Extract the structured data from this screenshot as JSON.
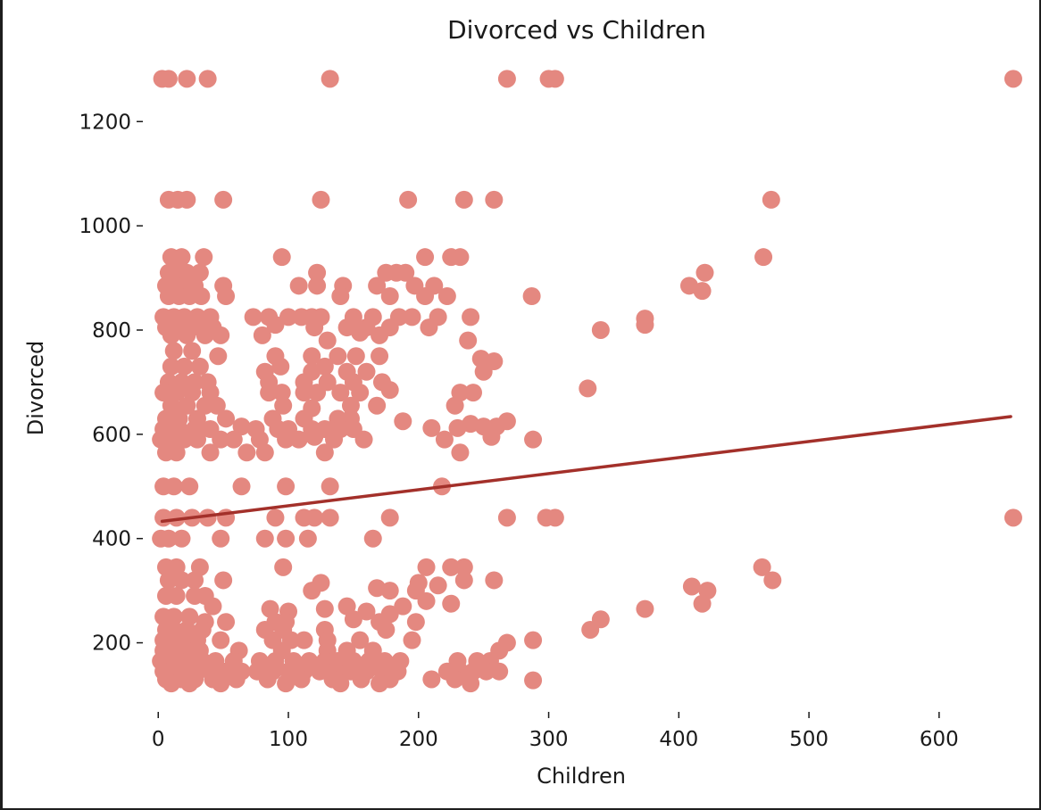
{
  "chart_data": {
    "type": "scatter",
    "title": "Divorced vs Children",
    "xlabel": "Children",
    "ylabel": "Divorced",
    "xlim": [
      -18,
      668
    ],
    "ylim": [
      88,
      1310
    ],
    "xticks": [
      0,
      100,
      200,
      300,
      400,
      500,
      600
    ],
    "yticks": [
      200,
      400,
      600,
      800,
      1000,
      1200
    ],
    "grid": false,
    "colors": {
      "points": "#e48880",
      "trend": "#a3302a",
      "text": "#1a1a1a"
    },
    "trendline": {
      "x": [
        3,
        655
      ],
      "y": [
        433,
        634
      ]
    },
    "points": [
      [
        3,
        1282
      ],
      [
        8,
        1282
      ],
      [
        22,
        1282
      ],
      [
        38,
        1282
      ],
      [
        132,
        1282
      ],
      [
        268,
        1282
      ],
      [
        300,
        1282
      ],
      [
        305,
        1282
      ],
      [
        657,
        1282
      ],
      [
        8,
        1050
      ],
      [
        15,
        1050
      ],
      [
        22,
        1050
      ],
      [
        50,
        1050
      ],
      [
        125,
        1050
      ],
      [
        192,
        1050
      ],
      [
        235,
        1050
      ],
      [
        258,
        1050
      ],
      [
        471,
        1050
      ],
      [
        10,
        940
      ],
      [
        18,
        940
      ],
      [
        35,
        940
      ],
      [
        95,
        940
      ],
      [
        205,
        940
      ],
      [
        225,
        940
      ],
      [
        232,
        940
      ],
      [
        465,
        940
      ],
      [
        8,
        910
      ],
      [
        15,
        910
      ],
      [
        22,
        910
      ],
      [
        32,
        910
      ],
      [
        122,
        910
      ],
      [
        175,
        910
      ],
      [
        183,
        910
      ],
      [
        190,
        910
      ],
      [
        420,
        910
      ],
      [
        6,
        885
      ],
      [
        14,
        885
      ],
      [
        20,
        885
      ],
      [
        28,
        885
      ],
      [
        50,
        885
      ],
      [
        108,
        885
      ],
      [
        122,
        885
      ],
      [
        142,
        885
      ],
      [
        168,
        885
      ],
      [
        197,
        885
      ],
      [
        212,
        885
      ],
      [
        408,
        885
      ],
      [
        8,
        865
      ],
      [
        16,
        865
      ],
      [
        24,
        865
      ],
      [
        33,
        865
      ],
      [
        52,
        865
      ],
      [
        140,
        865
      ],
      [
        178,
        865
      ],
      [
        205,
        865
      ],
      [
        222,
        865
      ],
      [
        287,
        865
      ],
      [
        418,
        875
      ],
      [
        4,
        825
      ],
      [
        12,
        825
      ],
      [
        20,
        825
      ],
      [
        30,
        825
      ],
      [
        40,
        825
      ],
      [
        73,
        825
      ],
      [
        85,
        825
      ],
      [
        100,
        825
      ],
      [
        110,
        825
      ],
      [
        118,
        825
      ],
      [
        125,
        825
      ],
      [
        150,
        825
      ],
      [
        165,
        825
      ],
      [
        185,
        825
      ],
      [
        195,
        825
      ],
      [
        215,
        825
      ],
      [
        240,
        825
      ],
      [
        374,
        822
      ],
      [
        6,
        805
      ],
      [
        14,
        805
      ],
      [
        22,
        805
      ],
      [
        32,
        805
      ],
      [
        42,
        805
      ],
      [
        90,
        810
      ],
      [
        120,
        805
      ],
      [
        145,
        805
      ],
      [
        160,
        805
      ],
      [
        178,
        805
      ],
      [
        208,
        805
      ],
      [
        340,
        800
      ],
      [
        374,
        810
      ],
      [
        10,
        790
      ],
      [
        22,
        790
      ],
      [
        36,
        790
      ],
      [
        48,
        790
      ],
      [
        80,
        790
      ],
      [
        130,
        780
      ],
      [
        155,
        795
      ],
      [
        170,
        790
      ],
      [
        238,
        780
      ],
      [
        12,
        760
      ],
      [
        26,
        760
      ],
      [
        46,
        750
      ],
      [
        90,
        750
      ],
      [
        118,
        750
      ],
      [
        138,
        750
      ],
      [
        152,
        750
      ],
      [
        170,
        750
      ],
      [
        248,
        745
      ],
      [
        258,
        740
      ],
      [
        10,
        730
      ],
      [
        20,
        730
      ],
      [
        32,
        730
      ],
      [
        82,
        720
      ],
      [
        94,
        730
      ],
      [
        118,
        720
      ],
      [
        128,
        730
      ],
      [
        145,
        720
      ],
      [
        160,
        720
      ],
      [
        250,
        720
      ],
      [
        8,
        700
      ],
      [
        18,
        700
      ],
      [
        28,
        700
      ],
      [
        38,
        700
      ],
      [
        85,
        700
      ],
      [
        112,
        700
      ],
      [
        130,
        700
      ],
      [
        150,
        700
      ],
      [
        172,
        700
      ],
      [
        4,
        680
      ],
      [
        14,
        680
      ],
      [
        26,
        680
      ],
      [
        40,
        680
      ],
      [
        85,
        680
      ],
      [
        95,
        680
      ],
      [
        112,
        680
      ],
      [
        122,
        680
      ],
      [
        140,
        680
      ],
      [
        155,
        680
      ],
      [
        178,
        685
      ],
      [
        232,
        680
      ],
      [
        242,
        680
      ],
      [
        330,
        688
      ],
      [
        10,
        655
      ],
      [
        22,
        655
      ],
      [
        36,
        655
      ],
      [
        45,
        655
      ],
      [
        96,
        655
      ],
      [
        118,
        650
      ],
      [
        148,
        655
      ],
      [
        168,
        655
      ],
      [
        228,
        655
      ],
      [
        6,
        630
      ],
      [
        16,
        630
      ],
      [
        30,
        630
      ],
      [
        52,
        630
      ],
      [
        88,
        630
      ],
      [
        112,
        630
      ],
      [
        138,
        630
      ],
      [
        148,
        630
      ],
      [
        188,
        625
      ],
      [
        240,
        620
      ],
      [
        268,
        625
      ],
      [
        4,
        610
      ],
      [
        16,
        610
      ],
      [
        28,
        610
      ],
      [
        40,
        610
      ],
      [
        64,
        615
      ],
      [
        75,
        610
      ],
      [
        92,
        610
      ],
      [
        100,
        610
      ],
      [
        118,
        610
      ],
      [
        128,
        610
      ],
      [
        140,
        610
      ],
      [
        150,
        610
      ],
      [
        210,
        612
      ],
      [
        230,
        612
      ],
      [
        250,
        615
      ],
      [
        260,
        615
      ],
      [
        2,
        590
      ],
      [
        10,
        590
      ],
      [
        20,
        590
      ],
      [
        30,
        590
      ],
      [
        48,
        590
      ],
      [
        58,
        590
      ],
      [
        78,
        590
      ],
      [
        98,
        590
      ],
      [
        108,
        590
      ],
      [
        120,
        595
      ],
      [
        135,
        590
      ],
      [
        158,
        590
      ],
      [
        220,
        590
      ],
      [
        256,
        595
      ],
      [
        288,
        590
      ],
      [
        6,
        565
      ],
      [
        14,
        565
      ],
      [
        40,
        565
      ],
      [
        68,
        565
      ],
      [
        82,
        565
      ],
      [
        128,
        565
      ],
      [
        232,
        565
      ],
      [
        4,
        500
      ],
      [
        12,
        500
      ],
      [
        24,
        500
      ],
      [
        64,
        500
      ],
      [
        98,
        500
      ],
      [
        132,
        500
      ],
      [
        218,
        500
      ],
      [
        4,
        440
      ],
      [
        14,
        440
      ],
      [
        26,
        440
      ],
      [
        38,
        440
      ],
      [
        52,
        440
      ],
      [
        90,
        440
      ],
      [
        112,
        440
      ],
      [
        120,
        440
      ],
      [
        132,
        440
      ],
      [
        178,
        440
      ],
      [
        268,
        440
      ],
      [
        298,
        440
      ],
      [
        305,
        440
      ],
      [
        657,
        440
      ],
      [
        2,
        400
      ],
      [
        8,
        400
      ],
      [
        18,
        400
      ],
      [
        48,
        400
      ],
      [
        82,
        400
      ],
      [
        98,
        400
      ],
      [
        115,
        400
      ],
      [
        165,
        400
      ],
      [
        6,
        345
      ],
      [
        14,
        345
      ],
      [
        32,
        345
      ],
      [
        96,
        345
      ],
      [
        206,
        345
      ],
      [
        225,
        345
      ],
      [
        235,
        345
      ],
      [
        464,
        345
      ],
      [
        8,
        320
      ],
      [
        18,
        320
      ],
      [
        28,
        320
      ],
      [
        50,
        320
      ],
      [
        118,
        300
      ],
      [
        125,
        315
      ],
      [
        168,
        305
      ],
      [
        178,
        300
      ],
      [
        200,
        315
      ],
      [
        215,
        310
      ],
      [
        235,
        320
      ],
      [
        258,
        320
      ],
      [
        410,
        308
      ],
      [
        422,
        300
      ],
      [
        472,
        320
      ],
      [
        6,
        290
      ],
      [
        14,
        290
      ],
      [
        28,
        290
      ],
      [
        36,
        290
      ],
      [
        42,
        270
      ],
      [
        86,
        265
      ],
      [
        100,
        260
      ],
      [
        128,
        265
      ],
      [
        145,
        270
      ],
      [
        160,
        260
      ],
      [
        178,
        255
      ],
      [
        188,
        270
      ],
      [
        198,
        300
      ],
      [
        206,
        280
      ],
      [
        225,
        275
      ],
      [
        374,
        265
      ],
      [
        418,
        275
      ],
      [
        4,
        250
      ],
      [
        12,
        250
      ],
      [
        24,
        250
      ],
      [
        36,
        240
      ],
      [
        52,
        240
      ],
      [
        90,
        240
      ],
      [
        98,
        240
      ],
      [
        150,
        245
      ],
      [
        170,
        240
      ],
      [
        198,
        240
      ],
      [
        340,
        245
      ],
      [
        6,
        225
      ],
      [
        12,
        225
      ],
      [
        22,
        225
      ],
      [
        34,
        225
      ],
      [
        82,
        225
      ],
      [
        96,
        225
      ],
      [
        128,
        225
      ],
      [
        175,
        225
      ],
      [
        332,
        225
      ],
      [
        4,
        205
      ],
      [
        10,
        205
      ],
      [
        18,
        205
      ],
      [
        30,
        205
      ],
      [
        48,
        205
      ],
      [
        88,
        205
      ],
      [
        102,
        205
      ],
      [
        112,
        205
      ],
      [
        130,
        205
      ],
      [
        155,
        205
      ],
      [
        195,
        205
      ],
      [
        268,
        200
      ],
      [
        288,
        205
      ],
      [
        4,
        185
      ],
      [
        12,
        185
      ],
      [
        22,
        185
      ],
      [
        32,
        185
      ],
      [
        62,
        185
      ],
      [
        95,
        185
      ],
      [
        130,
        185
      ],
      [
        145,
        185
      ],
      [
        165,
        185
      ],
      [
        262,
        185
      ],
      [
        2,
        165
      ],
      [
        8,
        165
      ],
      [
        16,
        165
      ],
      [
        24,
        165
      ],
      [
        34,
        165
      ],
      [
        44,
        165
      ],
      [
        58,
        165
      ],
      [
        78,
        165
      ],
      [
        90,
        165
      ],
      [
        104,
        165
      ],
      [
        116,
        165
      ],
      [
        128,
        165
      ],
      [
        138,
        165
      ],
      [
        150,
        165
      ],
      [
        162,
        165
      ],
      [
        174,
        165
      ],
      [
        186,
        165
      ],
      [
        230,
        165
      ],
      [
        245,
        165
      ],
      [
        255,
        165
      ],
      [
        4,
        145
      ],
      [
        12,
        145
      ],
      [
        20,
        145
      ],
      [
        30,
        145
      ],
      [
        40,
        145
      ],
      [
        52,
        145
      ],
      [
        64,
        145
      ],
      [
        76,
        145
      ],
      [
        88,
        145
      ],
      [
        100,
        145
      ],
      [
        112,
        145
      ],
      [
        124,
        145
      ],
      [
        136,
        145
      ],
      [
        148,
        145
      ],
      [
        160,
        145
      ],
      [
        172,
        145
      ],
      [
        184,
        145
      ],
      [
        222,
        145
      ],
      [
        232,
        145
      ],
      [
        242,
        145
      ],
      [
        252,
        145
      ],
      [
        262,
        145
      ],
      [
        6,
        130
      ],
      [
        18,
        130
      ],
      [
        28,
        130
      ],
      [
        42,
        130
      ],
      [
        60,
        130
      ],
      [
        84,
        130
      ],
      [
        110,
        130
      ],
      [
        134,
        130
      ],
      [
        156,
        130
      ],
      [
        178,
        130
      ],
      [
        210,
        130
      ],
      [
        228,
        130
      ],
      [
        288,
        128
      ],
      [
        10,
        122
      ],
      [
        24,
        122
      ],
      [
        48,
        122
      ],
      [
        98,
        122
      ],
      [
        140,
        122
      ],
      [
        170,
        122
      ],
      [
        240,
        122
      ]
    ]
  }
}
